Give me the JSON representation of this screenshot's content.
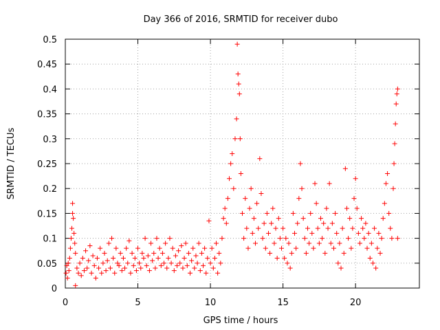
{
  "chart_data": {
    "type": "scatter",
    "title": "Day 366 of 2016, SRMTID for receiver dubo",
    "xlabel": "GPS time / hours",
    "ylabel": "SRMTID / TECUs",
    "xlim": [
      0,
      24.4
    ],
    "ylim": [
      0,
      0.5
    ],
    "x_ticks": [
      0,
      5,
      10,
      15,
      20
    ],
    "x_tick_labels": [
      "0",
      "5",
      "10",
      "15",
      "20"
    ],
    "y_ticks": [
      0,
      0.05,
      0.1,
      0.15,
      0.2,
      0.25,
      0.3,
      0.35,
      0.4,
      0.45,
      0.5
    ],
    "y_tick_labels": [
      "0",
      "0.05",
      "0.1",
      "0.15",
      "0.2",
      "0.25",
      "0.3",
      "0.35",
      "0.4",
      "0.45",
      "0.5"
    ],
    "grid": true,
    "marker": "+",
    "color": "#ff0000",
    "series": [
      {
        "name": "SRMTID",
        "points": [
          [
            0.05,
            0.03
          ],
          [
            0.1,
            0.045
          ],
          [
            0.15,
            0.02
          ],
          [
            0.2,
            0.05
          ],
          [
            0.25,
            0.035
          ],
          [
            0.3,
            0.06
          ],
          [
            0.35,
            0.08
          ],
          [
            0.4,
            0.1
          ],
          [
            0.45,
            0.12
          ],
          [
            0.5,
            0.15
          ],
          [
            0.5,
            0.17
          ],
          [
            0.55,
            0.14
          ],
          [
            0.6,
            0.11
          ],
          [
            0.65,
            0.09
          ],
          [
            0.7,
            0.07
          ],
          [
            0.7,
            0.005
          ],
          [
            0.8,
            0.04
          ],
          [
            0.9,
            0.03
          ],
          [
            1.0,
            0.05
          ],
          [
            1.1,
            0.025
          ],
          [
            1.2,
            0.06
          ],
          [
            1.3,
            0.035
          ],
          [
            1.4,
            0.075
          ],
          [
            1.5,
            0.04
          ],
          [
            1.6,
            0.055
          ],
          [
            1.7,
            0.085
          ],
          [
            1.8,
            0.03
          ],
          [
            1.9,
            0.065
          ],
          [
            2.0,
            0.045
          ],
          [
            2.1,
            0.02
          ],
          [
            2.2,
            0.06
          ],
          [
            2.3,
            0.04
          ],
          [
            2.4,
            0.08
          ],
          [
            2.5,
            0.03
          ],
          [
            2.6,
            0.05
          ],
          [
            2.7,
            0.07
          ],
          [
            2.8,
            0.035
          ],
          [
            2.9,
            0.055
          ],
          [
            3.0,
            0.09
          ],
          [
            3.1,
            0.04
          ],
          [
            3.2,
            0.1
          ],
          [
            3.3,
            0.06
          ],
          [
            3.4,
            0.03
          ],
          [
            3.5,
            0.08
          ],
          [
            3.6,
            0.05
          ],
          [
            3.7,
            0.045
          ],
          [
            3.8,
            0.07
          ],
          [
            3.9,
            0.035
          ],
          [
            4.0,
            0.06
          ],
          [
            4.1,
            0.04
          ],
          [
            4.2,
            0.08
          ],
          [
            4.3,
            0.05
          ],
          [
            4.4,
            0.095
          ],
          [
            4.5,
            0.03
          ],
          [
            4.6,
            0.07
          ],
          [
            4.7,
            0.045
          ],
          [
            4.8,
            0.06
          ],
          [
            4.9,
            0.035
          ],
          [
            5.0,
            0.08
          ],
          [
            5.1,
            0.05
          ],
          [
            5.2,
            0.04
          ],
          [
            5.3,
            0.07
          ],
          [
            5.4,
            0.06
          ],
          [
            5.5,
            0.1
          ],
          [
            5.6,
            0.045
          ],
          [
            5.7,
            0.065
          ],
          [
            5.8,
            0.035
          ],
          [
            5.9,
            0.09
          ],
          [
            6.0,
            0.055
          ],
          [
            6.1,
            0.07
          ],
          [
            6.2,
            0.04
          ],
          [
            6.3,
            0.1
          ],
          [
            6.4,
            0.06
          ],
          [
            6.5,
            0.08
          ],
          [
            6.6,
            0.045
          ],
          [
            6.7,
            0.07
          ],
          [
            6.8,
            0.05
          ],
          [
            6.9,
            0.09
          ],
          [
            7.0,
            0.04
          ],
          [
            7.1,
            0.06
          ],
          [
            7.2,
            0.1
          ],
          [
            7.3,
            0.05
          ],
          [
            7.4,
            0.08
          ],
          [
            7.5,
            0.035
          ],
          [
            7.6,
            0.065
          ],
          [
            7.7,
            0.045
          ],
          [
            7.8,
            0.075
          ],
          [
            7.9,
            0.05
          ],
          [
            8.0,
            0.085
          ],
          [
            8.1,
            0.04
          ],
          [
            8.2,
            0.06
          ],
          [
            8.3,
            0.09
          ],
          [
            8.4,
            0.045
          ],
          [
            8.5,
            0.07
          ],
          [
            8.6,
            0.03
          ],
          [
            8.7,
            0.055
          ],
          [
            8.8,
            0.08
          ],
          [
            8.9,
            0.04
          ],
          [
            9.0,
            0.065
          ],
          [
            9.1,
            0.05
          ],
          [
            9.2,
            0.09
          ],
          [
            9.3,
            0.035
          ],
          [
            9.4,
            0.07
          ],
          [
            9.5,
            0.045
          ],
          [
            9.6,
            0.08
          ],
          [
            9.7,
            0.03
          ],
          [
            9.8,
            0.06
          ],
          [
            9.9,
            0.135
          ],
          [
            10.0,
            0.05
          ],
          [
            10.1,
            0.08
          ],
          [
            10.2,
            0.04
          ],
          [
            10.3,
            0.06
          ],
          [
            10.4,
            0.09
          ],
          [
            10.5,
            0.03
          ],
          [
            10.6,
            0.07
          ],
          [
            10.7,
            0.05
          ],
          [
            10.8,
            0.1
          ],
          [
            10.9,
            0.14
          ],
          [
            11.0,
            0.16
          ],
          [
            11.1,
            0.13
          ],
          [
            11.2,
            0.18
          ],
          [
            11.3,
            0.22
          ],
          [
            11.4,
            0.25
          ],
          [
            11.5,
            0.27
          ],
          [
            11.6,
            0.2
          ],
          [
            11.7,
            0.3
          ],
          [
            11.8,
            0.34
          ],
          [
            11.85,
            0.49
          ],
          [
            11.9,
            0.43
          ],
          [
            11.95,
            0.41
          ],
          [
            12.0,
            0.39
          ],
          [
            12.05,
            0.3
          ],
          [
            12.1,
            0.23
          ],
          [
            12.2,
            0.15
          ],
          [
            12.3,
            0.1
          ],
          [
            12.4,
            0.18
          ],
          [
            12.5,
            0.12
          ],
          [
            12.6,
            0.08
          ],
          [
            12.7,
            0.16
          ],
          [
            12.8,
            0.2
          ],
          [
            12.9,
            0.11
          ],
          [
            13.0,
            0.14
          ],
          [
            13.1,
            0.09
          ],
          [
            13.2,
            0.17
          ],
          [
            13.3,
            0.12
          ],
          [
            13.4,
            0.26
          ],
          [
            13.5,
            0.19
          ],
          [
            13.6,
            0.1
          ],
          [
            13.7,
            0.13
          ],
          [
            13.8,
            0.08
          ],
          [
            13.9,
            0.15
          ],
          [
            14.0,
            0.11
          ],
          [
            14.1,
            0.07
          ],
          [
            14.2,
            0.13
          ],
          [
            14.3,
            0.16
          ],
          [
            14.4,
            0.09
          ],
          [
            14.5,
            0.12
          ],
          [
            14.6,
            0.06
          ],
          [
            14.7,
            0.14
          ],
          [
            14.8,
            0.1
          ],
          [
            14.9,
            0.08
          ],
          [
            15.0,
            0.12
          ],
          [
            15.1,
            0.06
          ],
          [
            15.2,
            0.1
          ],
          [
            15.3,
            0.05
          ],
          [
            15.4,
            0.09
          ],
          [
            15.5,
            0.04
          ],
          [
            15.6,
            0.07
          ],
          [
            15.7,
            0.15
          ],
          [
            15.8,
            0.11
          ],
          [
            15.9,
            0.08
          ],
          [
            16.0,
            0.13
          ],
          [
            16.1,
            0.18
          ],
          [
            16.2,
            0.25
          ],
          [
            16.3,
            0.2
          ],
          [
            16.4,
            0.14
          ],
          [
            16.5,
            0.1
          ],
          [
            16.6,
            0.07
          ],
          [
            16.7,
            0.12
          ],
          [
            16.8,
            0.09
          ],
          [
            16.9,
            0.15
          ],
          [
            17.0,
            0.11
          ],
          [
            17.1,
            0.08
          ],
          [
            17.2,
            0.21
          ],
          [
            17.3,
            0.17
          ],
          [
            17.4,
            0.12
          ],
          [
            17.5,
            0.09
          ],
          [
            17.6,
            0.14
          ],
          [
            17.7,
            0.1
          ],
          [
            17.8,
            0.13
          ],
          [
            17.9,
            0.07
          ],
          [
            18.0,
            0.16
          ],
          [
            18.1,
            0.12
          ],
          [
            18.2,
            0.21
          ],
          [
            18.3,
            0.09
          ],
          [
            18.4,
            0.13
          ],
          [
            18.5,
            0.08
          ],
          [
            18.6,
            0.15
          ],
          [
            18.7,
            0.11
          ],
          [
            18.8,
            0.05
          ],
          [
            18.9,
            0.09
          ],
          [
            19.0,
            0.04
          ],
          [
            19.1,
            0.12
          ],
          [
            19.2,
            0.07
          ],
          [
            19.3,
            0.24
          ],
          [
            19.4,
            0.16
          ],
          [
            19.5,
            0.1
          ],
          [
            19.6,
            0.14
          ],
          [
            19.7,
            0.08
          ],
          [
            19.8,
            0.12
          ],
          [
            19.9,
            0.18
          ],
          [
            20.0,
            0.22
          ],
          [
            20.1,
            0.16
          ],
          [
            20.2,
            0.11
          ],
          [
            20.3,
            0.09
          ],
          [
            20.4,
            0.14
          ],
          [
            20.5,
            0.12
          ],
          [
            20.6,
            0.1
          ],
          [
            20.7,
            0.13
          ],
          [
            20.8,
            0.08
          ],
          [
            20.9,
            0.11
          ],
          [
            21.0,
            0.06
          ],
          [
            21.1,
            0.09
          ],
          [
            21.2,
            0.05
          ],
          [
            21.3,
            0.12
          ],
          [
            21.4,
            0.04
          ],
          [
            21.5,
            0.08
          ],
          [
            21.6,
            0.11
          ],
          [
            21.7,
            0.07
          ],
          [
            21.8,
            0.1
          ],
          [
            21.9,
            0.14
          ],
          [
            22.0,
            0.17
          ],
          [
            22.1,
            0.21
          ],
          [
            22.2,
            0.23
          ],
          [
            22.3,
            0.15
          ],
          [
            22.4,
            0.12
          ],
          [
            22.5,
            0.1
          ],
          [
            22.6,
            0.2
          ],
          [
            22.65,
            0.25
          ],
          [
            22.7,
            0.29
          ],
          [
            22.75,
            0.33
          ],
          [
            22.8,
            0.37
          ],
          [
            22.85,
            0.39
          ],
          [
            22.9,
            0.4
          ],
          [
            22.9,
            0.1
          ]
        ]
      }
    ]
  }
}
